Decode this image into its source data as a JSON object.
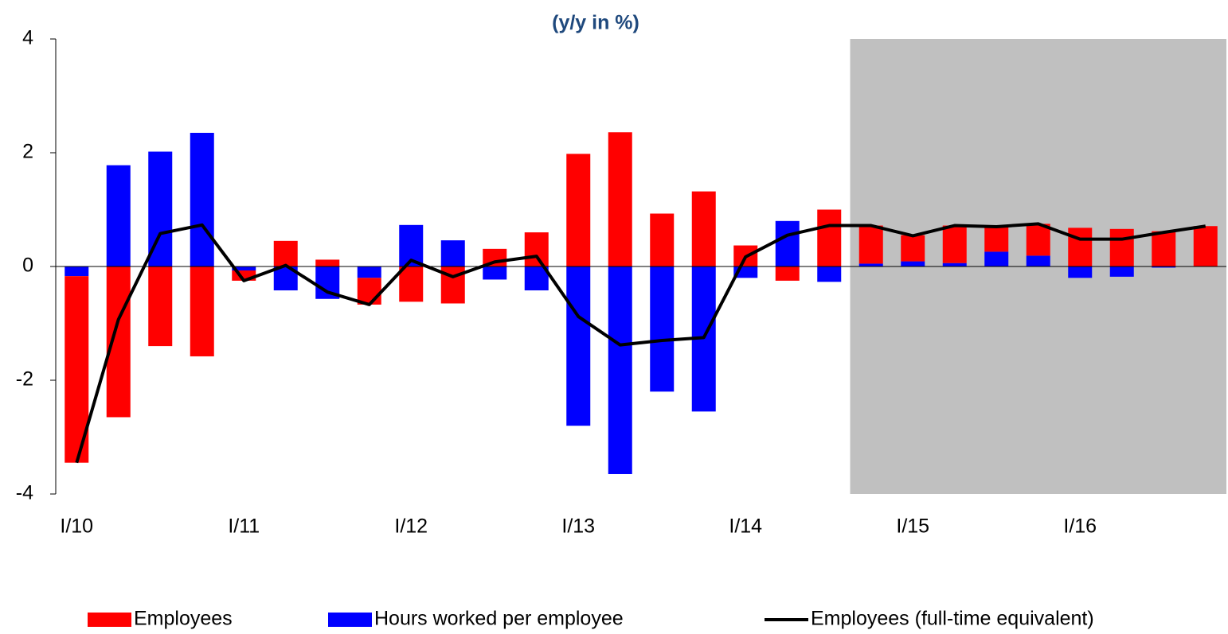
{
  "chart_data": {
    "type": "bar_line",
    "title": "(y/y in %)",
    "categories": [
      "I/10",
      null,
      null,
      null,
      "I/11",
      null,
      null,
      null,
      "I/12",
      null,
      null,
      null,
      "I/13",
      null,
      null,
      null,
      "I/14",
      null,
      null,
      null,
      "I/15",
      null,
      null,
      null,
      "I/16",
      null,
      null,
      null
    ],
    "series": [
      {
        "name": "Employees",
        "color": "#ff0000",
        "kind": "bar",
        "values": [
          -3.28,
          -2.65,
          -1.4,
          -1.58,
          -0.18,
          0.45,
          0.12,
          -0.47,
          -0.62,
          -0.65,
          0.31,
          0.6,
          1.98,
          2.36,
          0.93,
          1.32,
          0.37,
          -0.25,
          1.0,
          0.67,
          0.46,
          0.66,
          0.44,
          0.56,
          0.68,
          0.66,
          0.62,
          0.71
        ]
      },
      {
        "name": "Hours worked per employee",
        "color": "#0000ff",
        "kind": "bar",
        "values": [
          -0.17,
          1.78,
          2.02,
          2.35,
          -0.07,
          -0.42,
          -0.57,
          -0.2,
          0.73,
          0.46,
          -0.23,
          -0.42,
          -2.8,
          -3.65,
          -2.2,
          -2.55,
          -0.2,
          0.8,
          -0.27,
          0.05,
          0.09,
          0.06,
          0.26,
          0.19,
          -0.2,
          -0.18,
          -0.02,
          0
        ]
      },
      {
        "name": "Employees (full-time equivalent)",
        "color": "#000000",
        "kind": "line",
        "values": [
          -3.45,
          -0.93,
          0.58,
          0.73,
          -0.25,
          0.02,
          -0.45,
          -0.67,
          0.11,
          -0.18,
          0.08,
          0.18,
          -0.88,
          -1.38,
          -1.3,
          -1.25,
          0.17,
          0.55,
          0.72,
          0.72,
          0.54,
          0.72,
          0.7,
          0.75,
          0.48,
          0.48,
          0.6,
          0.71
        ]
      }
    ],
    "ylim": [
      -4,
      4
    ],
    "yticks": [
      -4,
      -2,
      0,
      2,
      4
    ],
    "shaded_categories": [
      19,
      27
    ],
    "shade_color": "#c0c0c0",
    "legend": "bottom"
  }
}
